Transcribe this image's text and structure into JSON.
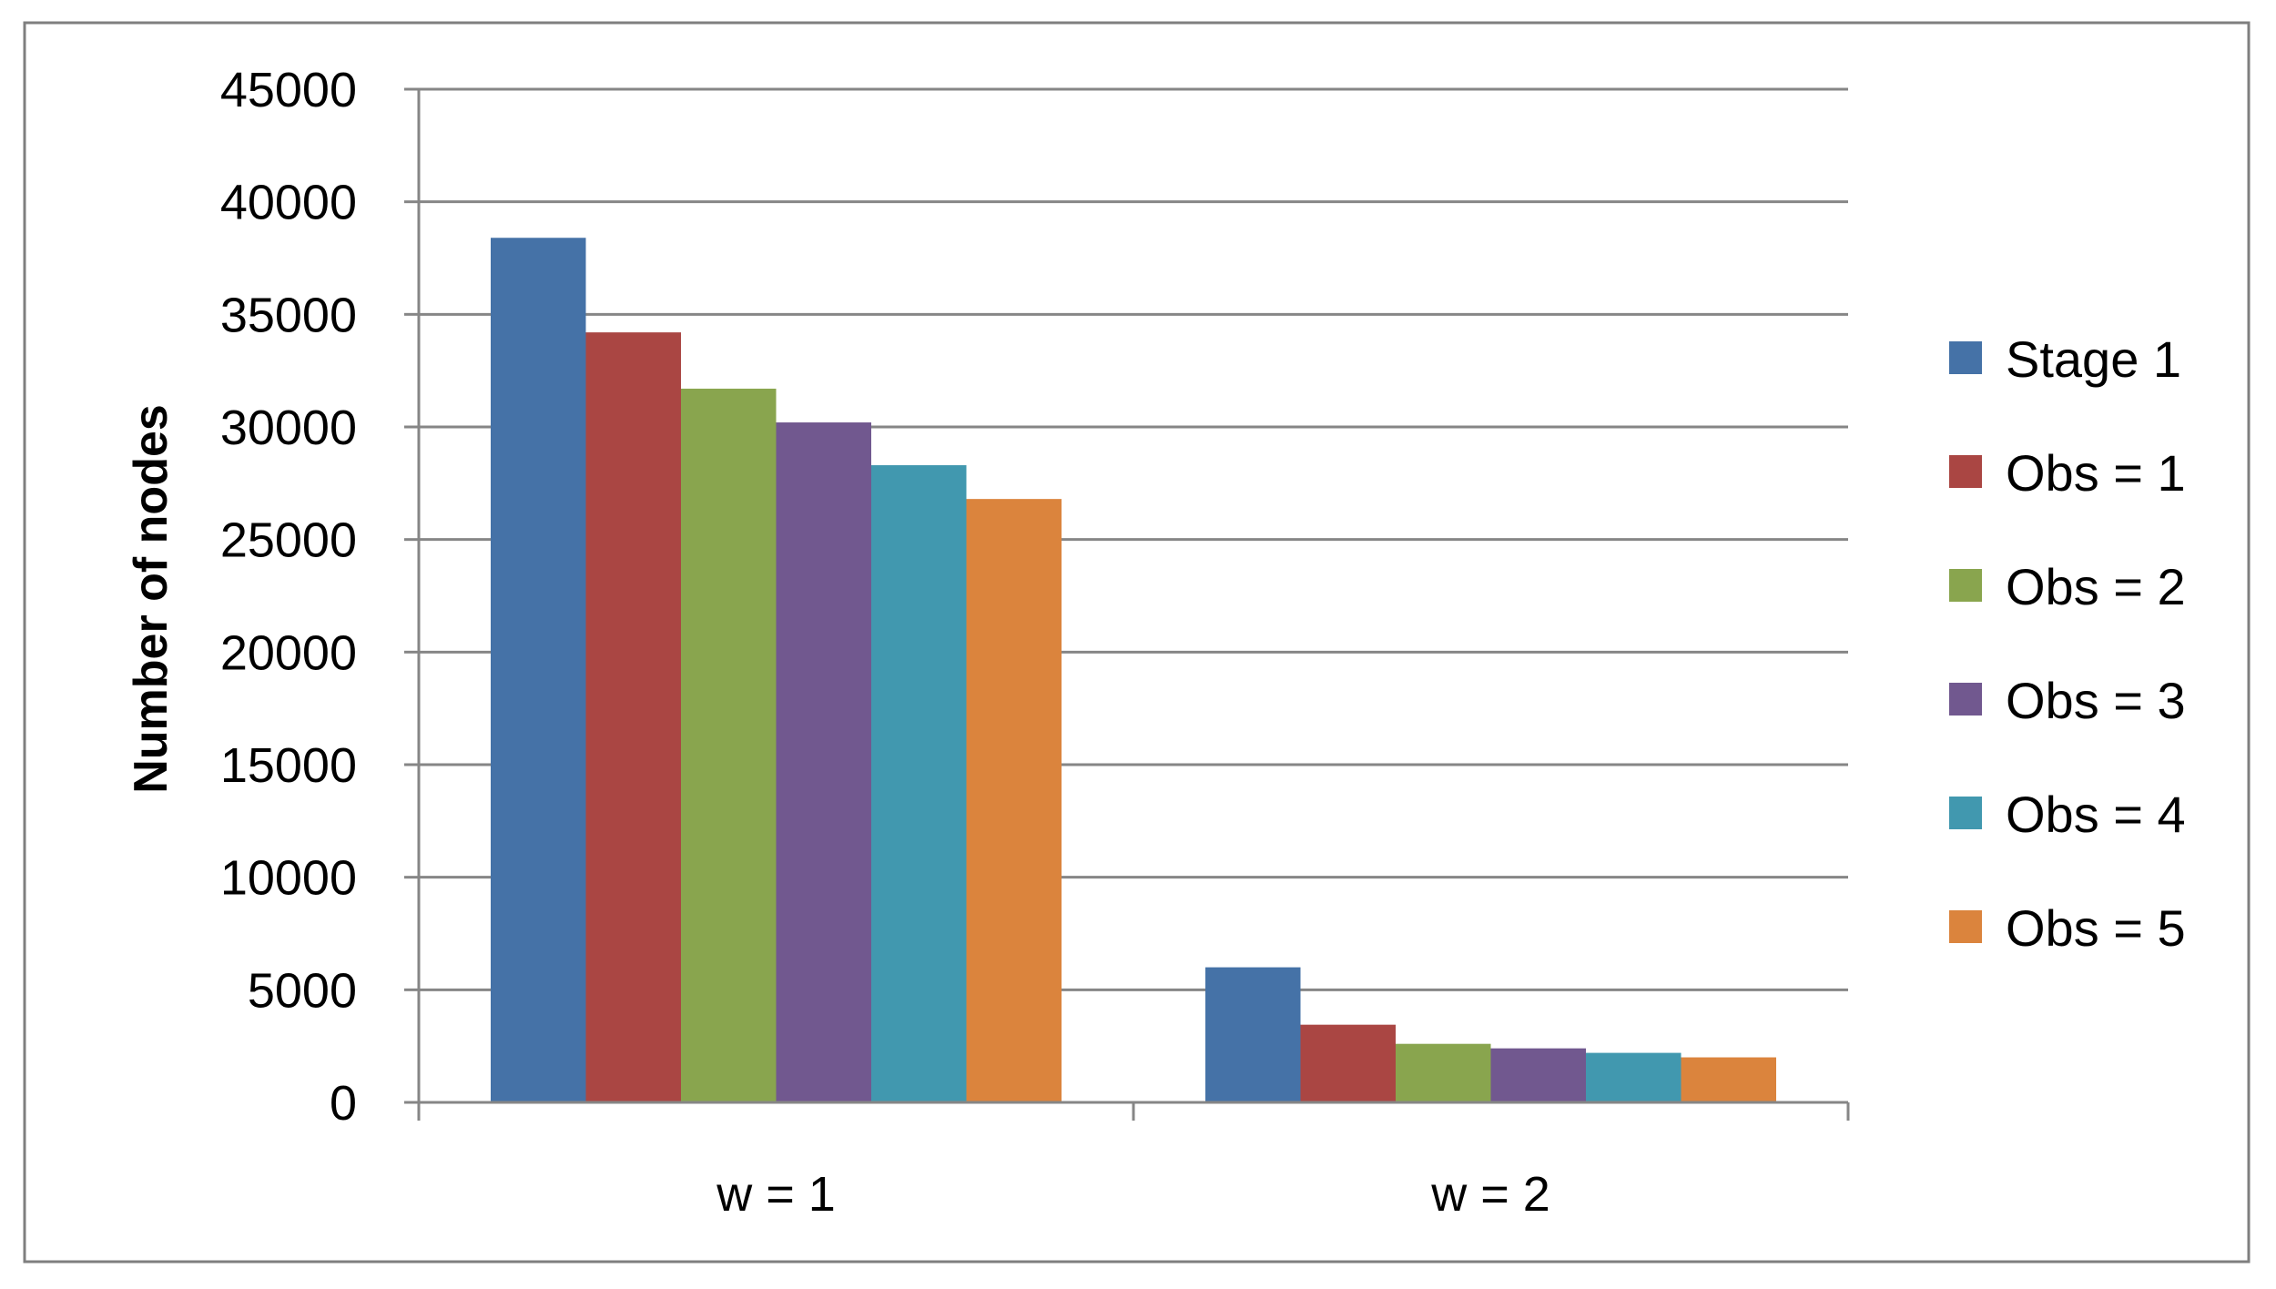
{
  "chart_data": {
    "type": "bar",
    "title": "",
    "xlabel": "",
    "ylabel": "Number of nodes",
    "categories": [
      "w = 1",
      "w = 2"
    ],
    "ylim": [
      0,
      45000
    ],
    "yticks": [
      0,
      5000,
      10000,
      15000,
      20000,
      25000,
      30000,
      35000,
      40000,
      45000
    ],
    "grid": true,
    "legend_position": "right",
    "series": [
      {
        "name": "Stage 1",
        "color": "#4572A7",
        "values": [
          38400,
          6000
        ]
      },
      {
        "name": "Obs = 1",
        "color": "#AA4643",
        "values": [
          34200,
          3450
        ]
      },
      {
        "name": "Obs = 2",
        "color": "#89A54E",
        "values": [
          31700,
          2600
        ]
      },
      {
        "name": "Obs = 3",
        "color": "#71588F",
        "values": [
          30200,
          2400
        ]
      },
      {
        "name": "Obs = 4",
        "color": "#4198AF",
        "values": [
          28300,
          2200
        ]
      },
      {
        "name": "Obs = 5",
        "color": "#DB843D",
        "values": [
          26800,
          2000
        ]
      }
    ]
  }
}
